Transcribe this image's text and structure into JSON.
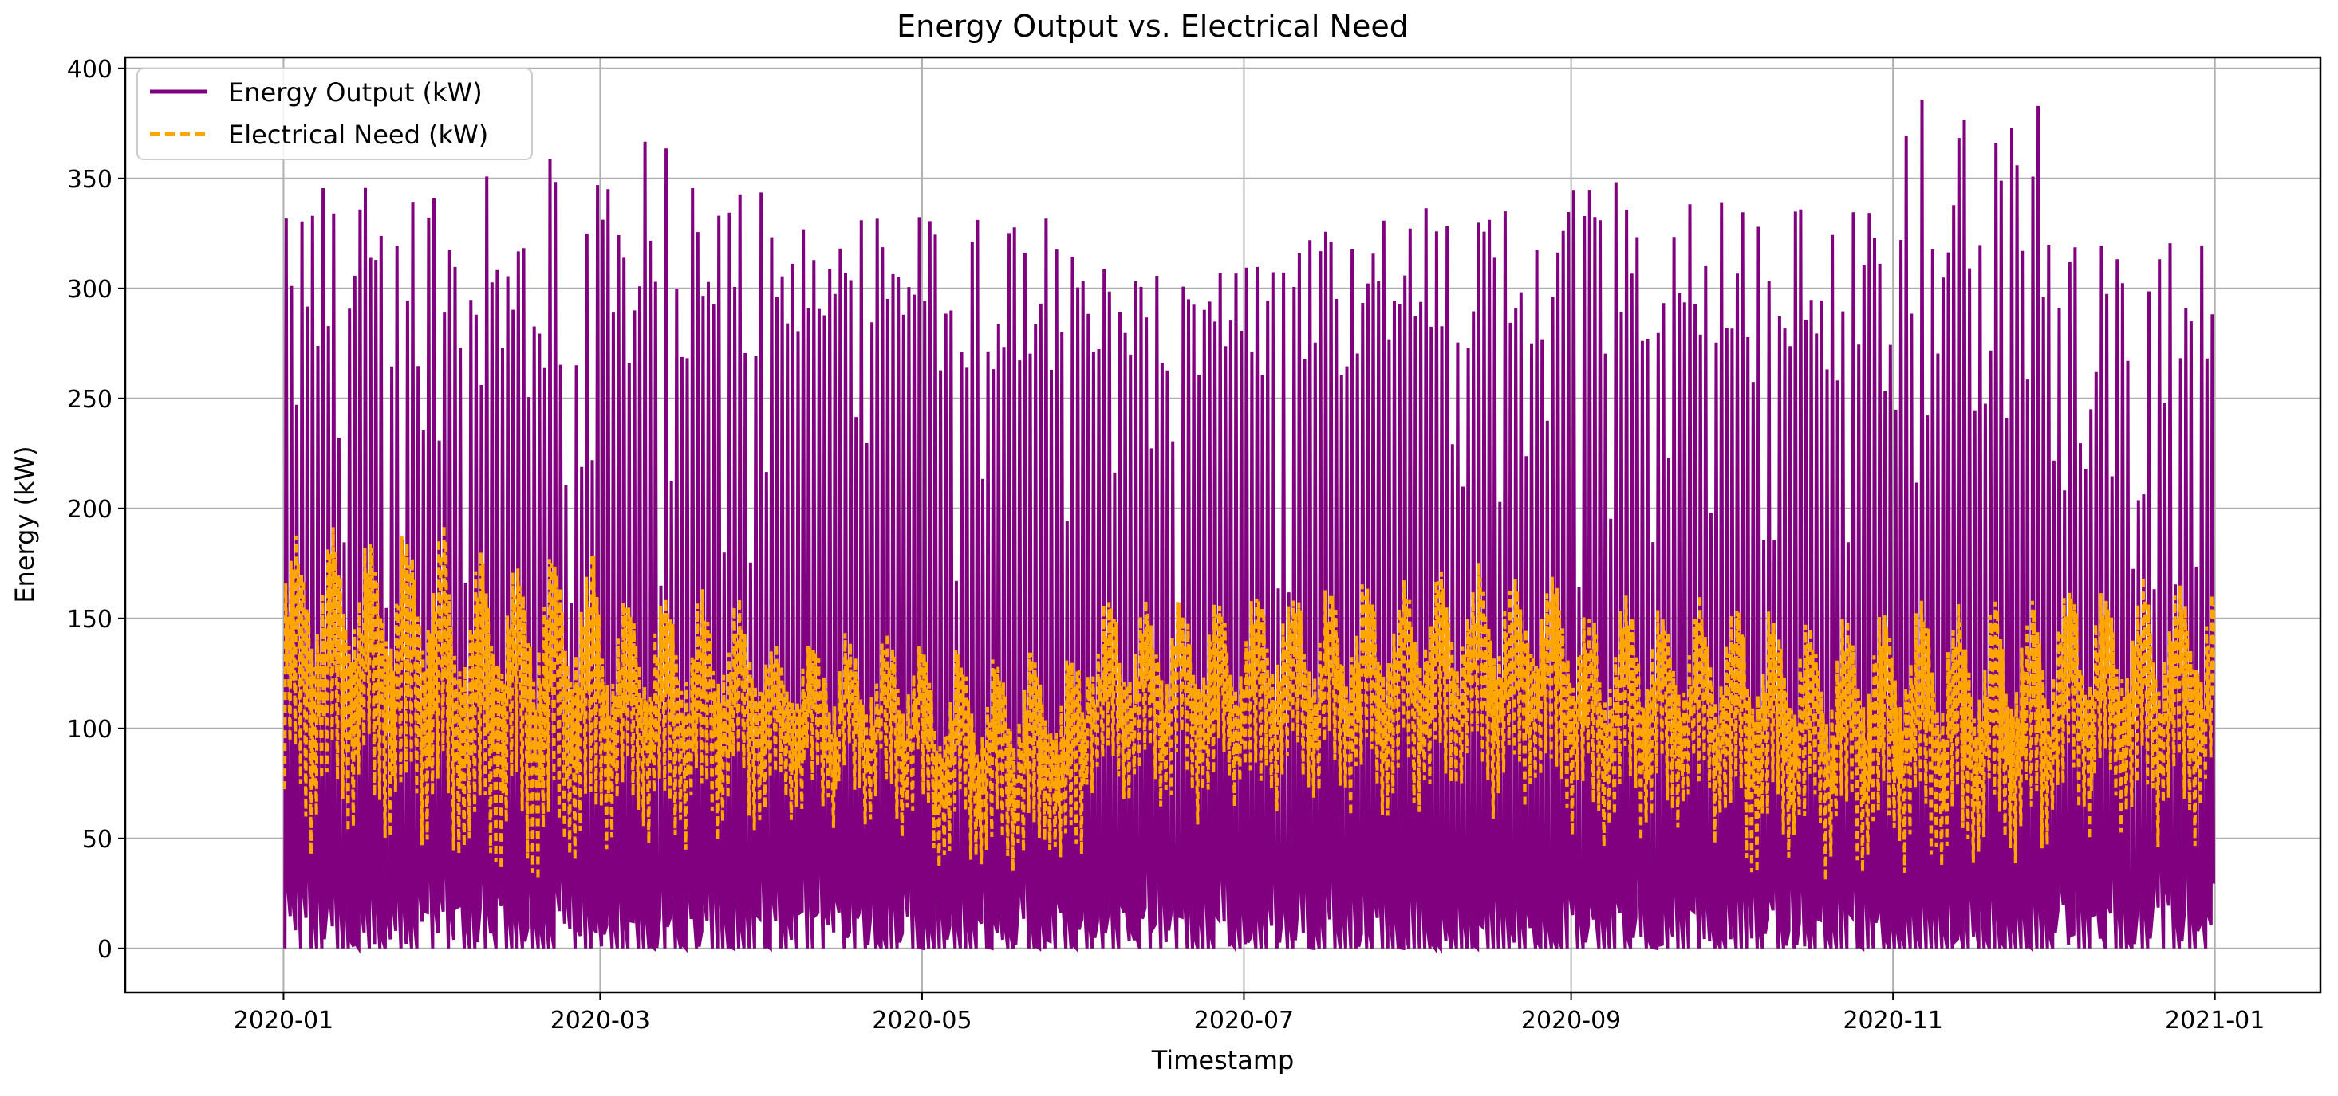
{
  "chart_data": {
    "type": "line",
    "title": "Energy Output vs. Electrical Need",
    "xlabel": "Timestamp",
    "ylabel": "Energy (kW)",
    "xlim": [
      "2019-12-02",
      "2021-01-21"
    ],
    "ylim": [
      -20,
      405
    ],
    "grid": true,
    "legend_position": "top-left",
    "x_ticks": [
      "2020-01",
      "2020-03",
      "2020-05",
      "2020-07",
      "2020-09",
      "2020-11",
      "2021-01"
    ],
    "y_ticks": [
      0,
      50,
      100,
      150,
      200,
      250,
      300,
      350,
      400
    ],
    "sampling": "hourly, 2020-01-01 to 2020-12-31 (shown as daily envelopes)",
    "series": [
      {
        "name": "Energy Output (kW)",
        "color": "#800080",
        "style": "solid",
        "monthly_daily_peak_range": [
          {
            "month": "2020-01",
            "min_peak": 230,
            "max_peak": 352
          },
          {
            "month": "2020-02",
            "min_peak": 250,
            "max_peak": 360
          },
          {
            "month": "2020-03",
            "min_peak": 260,
            "max_peak": 367
          },
          {
            "month": "2020-04",
            "min_peak": 270,
            "max_peak": 336
          },
          {
            "month": "2020-05",
            "min_peak": 260,
            "max_peak": 335
          },
          {
            "month": "2020-06",
            "min_peak": 260,
            "max_peak": 312
          },
          {
            "month": "2020-07",
            "min_peak": 260,
            "max_peak": 332
          },
          {
            "month": "2020-08",
            "min_peak": 270,
            "max_peak": 340
          },
          {
            "month": "2020-09",
            "min_peak": 270,
            "max_peak": 350
          },
          {
            "month": "2020-10",
            "min_peak": 250,
            "max_peak": 339
          },
          {
            "month": "2020-11",
            "min_peak": 240,
            "max_peak": 388
          },
          {
            "month": "2020-12",
            "min_peak": 200,
            "max_peak": 331
          }
        ],
        "daily_min": 0,
        "annual_max": 388
      },
      {
        "name": "Electrical Need (kW)",
        "color": "#FFA500",
        "style": "dashed",
        "monthly_range": [
          {
            "month": "2020-01",
            "min": 40,
            "max": 194
          },
          {
            "month": "2020-02",
            "min": 25,
            "max": 185
          },
          {
            "month": "2020-03",
            "min": 40,
            "max": 165
          },
          {
            "month": "2020-04",
            "min": 50,
            "max": 148
          },
          {
            "month": "2020-05",
            "min": 25,
            "max": 140
          },
          {
            "month": "2020-06",
            "min": 55,
            "max": 163
          },
          {
            "month": "2020-07",
            "min": 55,
            "max": 170
          },
          {
            "month": "2020-08",
            "min": 55,
            "max": 176
          },
          {
            "month": "2020-09",
            "min": 45,
            "max": 162
          },
          {
            "month": "2020-10",
            "min": 30,
            "max": 158
          },
          {
            "month": "2020-11",
            "min": 30,
            "max": 160
          },
          {
            "month": "2020-12",
            "min": 45,
            "max": 170
          }
        ]
      }
    ]
  }
}
